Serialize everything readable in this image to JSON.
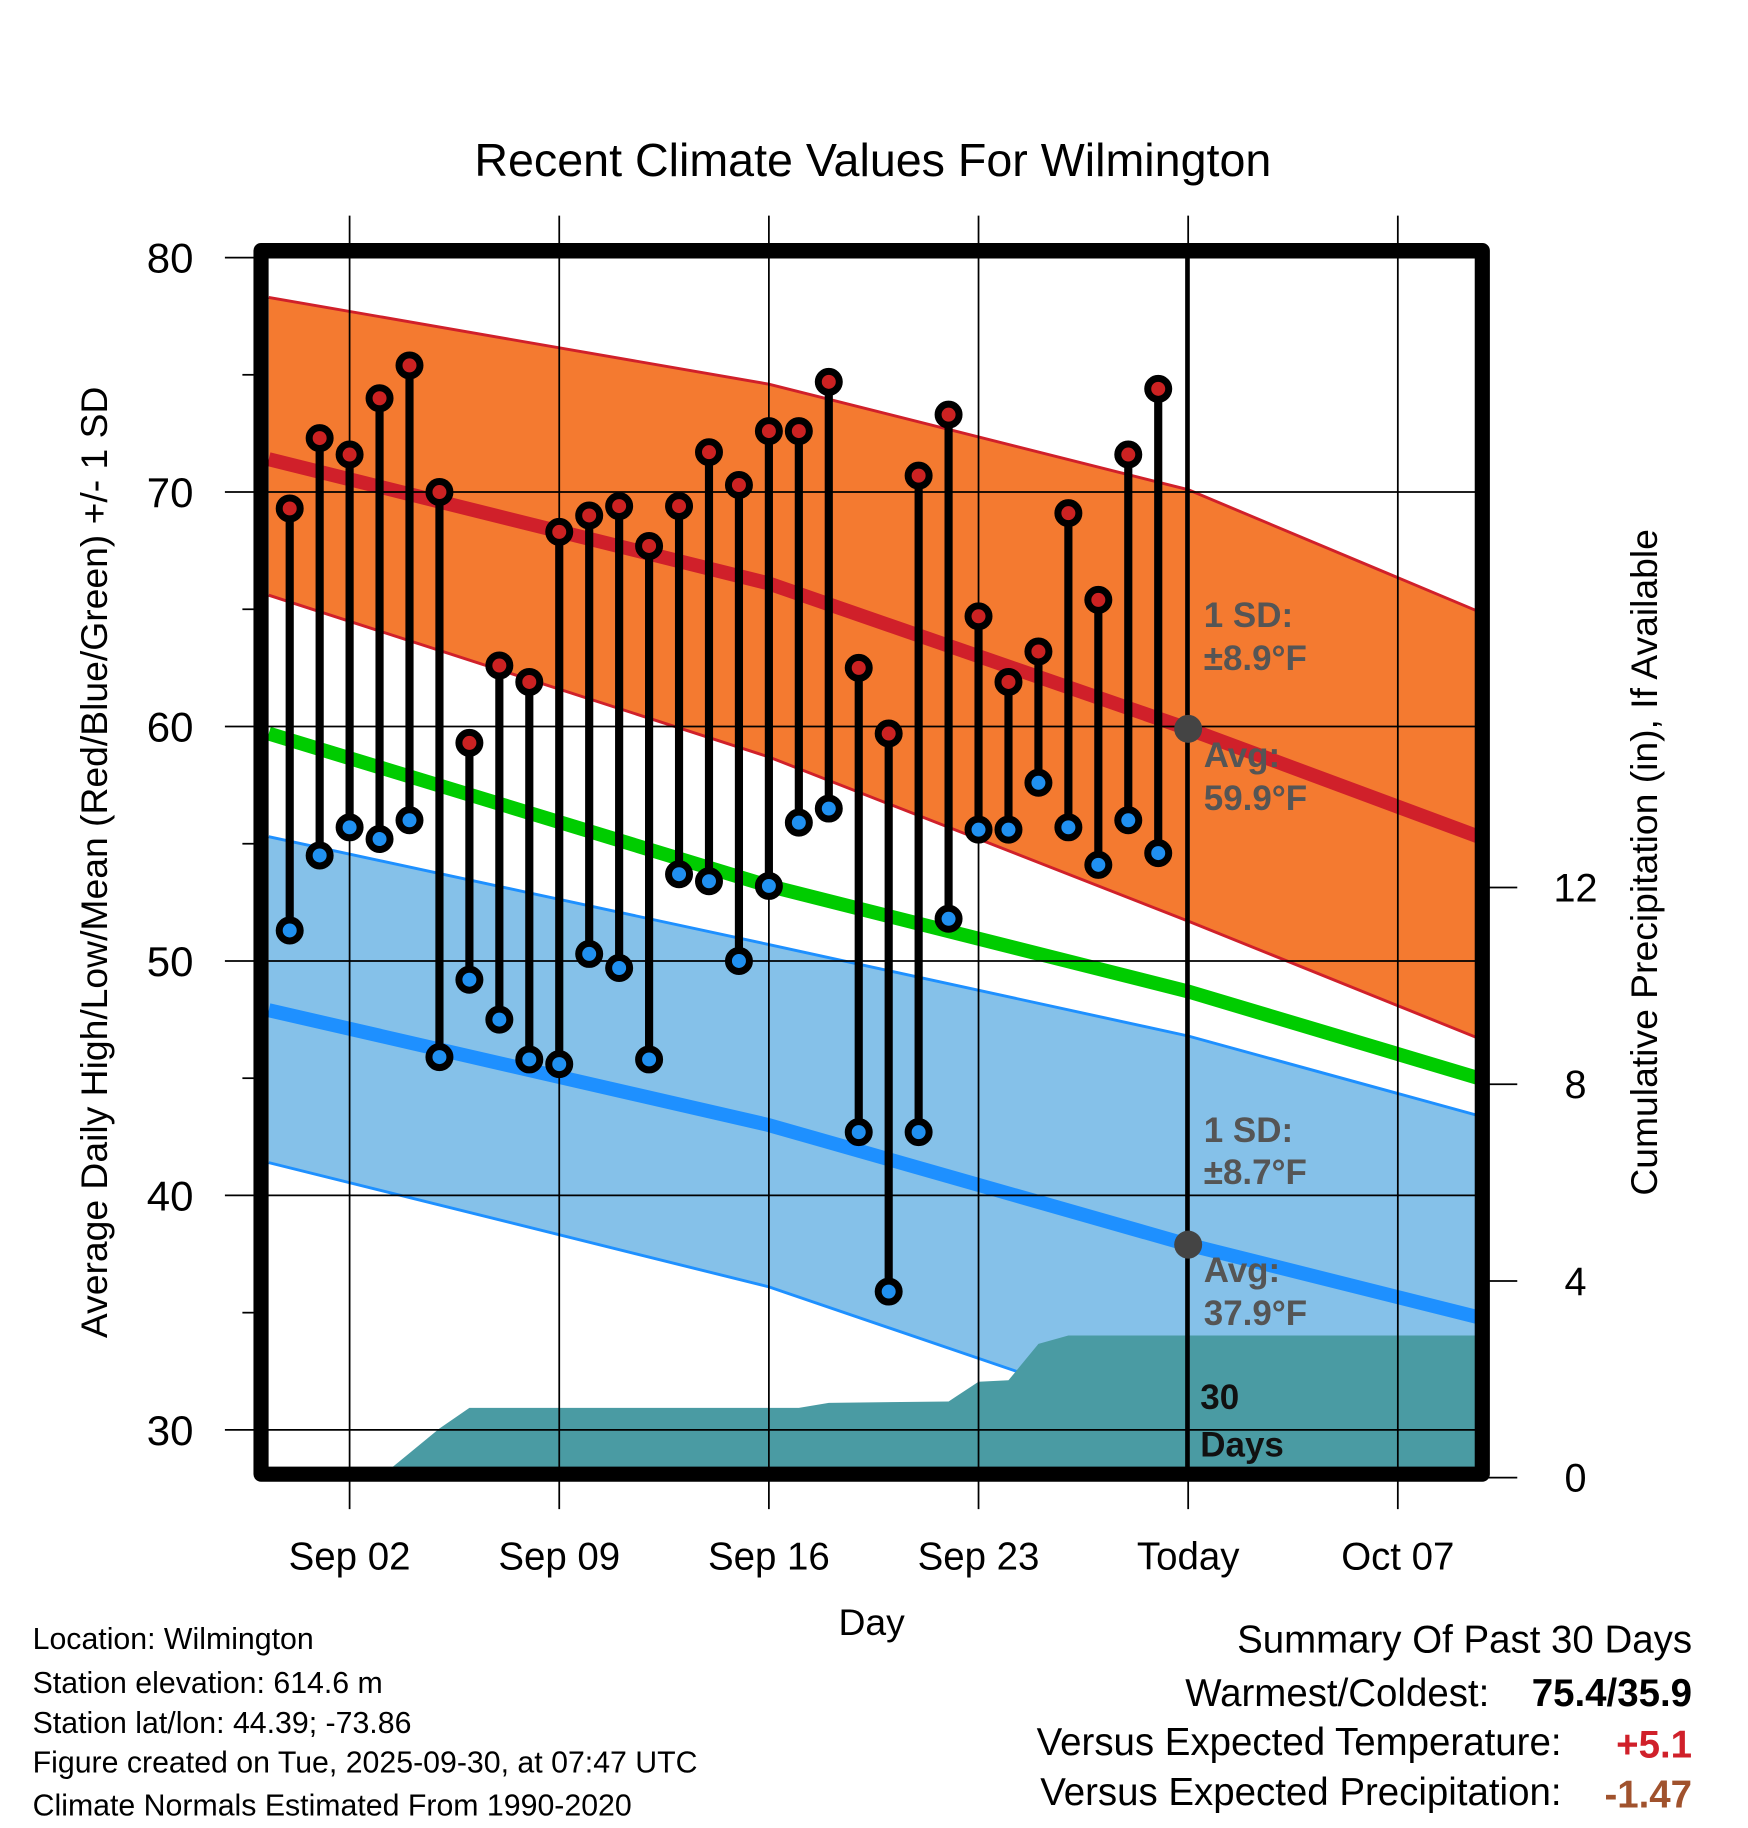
{
  "chart_data": {
    "type": "line",
    "title": "Recent Climate Values For Wilmington",
    "xlabel": "Day",
    "ylabel": "Average Daily High/Low/Mean (Red/Blue/Green) +/- 1 SD",
    "y2label": "Cumulative Precipitation (in), If Available",
    "ylim": [
      28,
      80
    ],
    "y2lim": [
      0,
      23.5
    ],
    "yticks": [
      "80",
      "70",
      "60",
      "50",
      "40",
      "30"
    ],
    "y2ticks": [
      "12",
      "8",
      "4",
      "0"
    ],
    "xticks": [
      {
        "label": "Sep 02",
        "day": 2
      },
      {
        "label": "Sep 09",
        "day": 9
      },
      {
        "label": "Sep 16",
        "day": 16
      },
      {
        "label": "Sep 23",
        "day": 23
      },
      {
        "label": "Today",
        "day": 30
      },
      {
        "label": "Oct 07",
        "day": 37
      }
    ],
    "xlim_days": [
      -0.7,
      39.7
    ],
    "grid": true,
    "days": [
      0,
      1,
      2,
      3,
      4,
      5,
      6,
      7,
      8,
      9,
      10,
      11,
      12,
      13,
      14,
      15,
      16,
      17,
      18,
      19,
      20,
      21,
      22,
      23,
      24,
      25,
      26,
      27,
      28,
      29
    ],
    "series": [
      {
        "name": "Daily High",
        "color": "#CC2222",
        "values": [
          69.3,
          72.3,
          71.6,
          74.0,
          75.4,
          70.0,
          59.3,
          62.6,
          61.9,
          68.3,
          69.0,
          69.4,
          67.7,
          69.4,
          71.7,
          70.3,
          72.6,
          72.6,
          74.7,
          62.5,
          59.7,
          70.7,
          73.3,
          64.7,
          61.9,
          63.2,
          69.1,
          65.4,
          71.6,
          74.4
        ]
      },
      {
        "name": "Daily Low",
        "color": "#2090F0",
        "values": [
          51.3,
          54.5,
          55.7,
          55.2,
          56.0,
          45.9,
          49.2,
          47.5,
          45.8,
          45.6,
          50.3,
          49.7,
          45.8,
          53.7,
          53.4,
          50.0,
          53.2,
          55.9,
          56.5,
          42.7,
          35.9,
          42.7,
          51.8,
          55.6,
          55.6,
          57.6,
          55.7,
          54.1,
          56.0,
          54.6
        ]
      }
    ],
    "normals": {
      "days": [
        -0.7,
        16,
        30,
        39.7
      ],
      "high_plus_sd": [
        78.3,
        74.6,
        70.1,
        64.9
      ],
      "high_mean": [
        71.4,
        66.1,
        59.9,
        55.3
      ],
      "high_minus_sd": [
        65.6,
        58.7,
        51.7,
        46.7
      ],
      "mean": [
        59.7,
        53.2,
        48.7,
        45.0
      ],
      "low_plus_sd": [
        55.3,
        50.7,
        46.8,
        43.4
      ],
      "low_mean": [
        47.9,
        43.0,
        37.9,
        34.8
      ],
      "low_minus_sd": [
        41.4,
        36.1,
        30.0,
        26.4
      ]
    },
    "precipitation": {
      "days": [
        3.0,
        4,
        5,
        6,
        17,
        18,
        22,
        23,
        24,
        25,
        26,
        39.7
      ],
      "inches": [
        0,
        0.5,
        1.0,
        1.42,
        1.42,
        1.52,
        1.55,
        1.95,
        1.98,
        2.72,
        2.89,
        2.89
      ]
    },
    "annotations": {
      "high_sd_label": "1 SD:",
      "high_sd_value": "±8.9°F",
      "high_avg_label": "Avg:",
      "high_avg_value": "59.9°F",
      "low_sd_label": "1 SD:",
      "low_sd_value": "±8.7°F",
      "low_avg_label": "Avg:",
      "low_avg_value": "37.9°F",
      "period_num": "30",
      "period_unit": "Days"
    },
    "today_high_avg": 59.9,
    "today_low_avg": 37.9,
    "colors": {
      "high_band": "#F47A30",
      "high_line": "#D0202A",
      "mean_line": "#00CC00",
      "low_band": "#85C1E9",
      "low_line": "#1E90FF",
      "precip": "#4A9BA3",
      "annotation": "#555555"
    }
  },
  "footer": {
    "location": "Location: Wilmington",
    "elevation": "Station elevation: 614.6 m",
    "latlon": "Station lat/lon: 44.39; -73.86",
    "created": "Figure created on Tue, 2025-09-30, at 07:47 UTC",
    "normals": "Climate Normals Estimated From 1990-2020"
  },
  "summary": {
    "title": "Summary Of Past 30 Days",
    "warm_cold_label": "Warmest/Coldest:",
    "warm_cold_value": "75.4/35.9",
    "temp_label": "Versus Expected Temperature:",
    "temp_value": "+5.1",
    "temp_color": "#D0202A",
    "precip_label": "Versus Expected Precipitation:",
    "precip_value": "-1.47",
    "precip_color": "#A0522D"
  }
}
